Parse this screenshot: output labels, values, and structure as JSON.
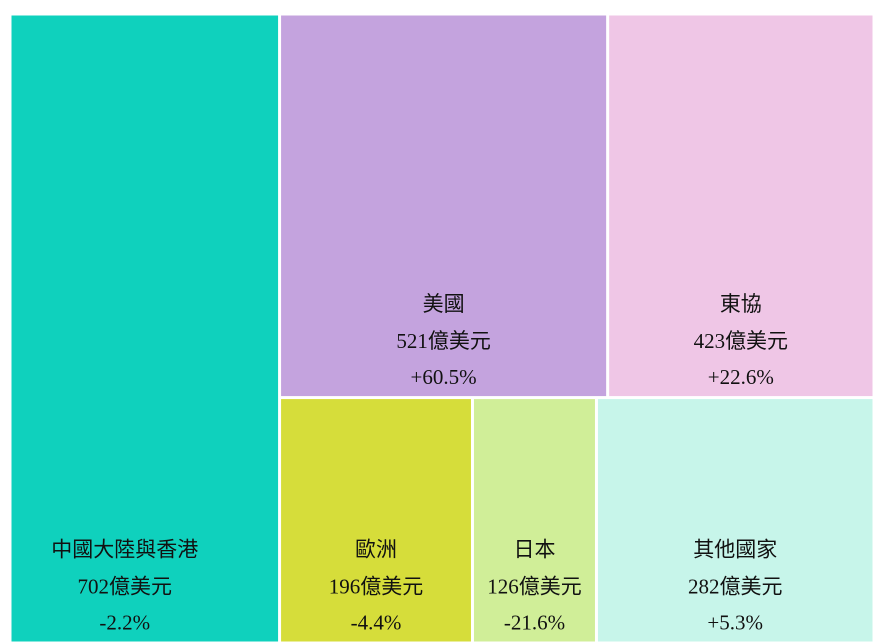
{
  "chart_data": {
    "type": "treemap",
    "categories": [
      "中國大陸與香港",
      "美國",
      "東協",
      "歐洲",
      "日本",
      "其他國家"
    ],
    "values": [
      702,
      521,
      423,
      196,
      126,
      282
    ],
    "value_labels": [
      "702億美元",
      "521億美元",
      "423億美元",
      "196億美元",
      "126億美元",
      "282億美元"
    ],
    "change_labels": [
      "-2.2%",
      "+60.5%",
      "+22.6%",
      "-4.4%",
      "-21.6%",
      "+5.3%"
    ],
    "colors": [
      "#0fd1bd",
      "#c4a3de",
      "#efc6e6",
      "#d6dd3a",
      "#d0ee98",
      "#c7f5ea"
    ]
  }
}
